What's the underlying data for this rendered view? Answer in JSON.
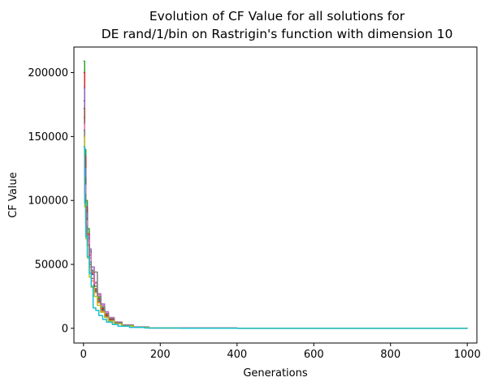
{
  "chart_data": {
    "type": "line",
    "title_lines": [
      "Evolution of CF Value for all solutions for",
      "DE rand/1/bin on Rastrigin's function with dimension 10"
    ],
    "xlabel": "Generations",
    "ylabel": "CF Value",
    "xlim": [
      -25,
      1025
    ],
    "ylim": [
      -11500,
      220000
    ],
    "xticks": [
      0,
      200,
      400,
      600,
      800,
      1000
    ],
    "yticks": [
      0,
      50000,
      100000,
      150000,
      200000
    ],
    "grid": false,
    "legend": "none",
    "series": [
      {
        "color": "#1f77b4",
        "points": [
          [
            0,
            178000
          ],
          [
            3,
            120000
          ],
          [
            6,
            92000
          ],
          [
            10,
            70000
          ],
          [
            15,
            55000
          ],
          [
            20,
            42000
          ],
          [
            28,
            30000
          ],
          [
            36,
            22000
          ],
          [
            45,
            15000
          ],
          [
            55,
            10000
          ],
          [
            65,
            7000
          ],
          [
            80,
            4200
          ],
          [
            100,
            2200
          ],
          [
            130,
            900
          ],
          [
            170,
            350
          ],
          [
            250,
            120
          ],
          [
            400,
            40
          ],
          [
            1000,
            10
          ]
        ]
      },
      {
        "color": "#ff7f0e",
        "points": [
          [
            0,
            165000
          ],
          [
            3,
            110000
          ],
          [
            6,
            82000
          ],
          [
            10,
            66000
          ],
          [
            15,
            48000
          ],
          [
            20,
            37000
          ],
          [
            28,
            28000
          ],
          [
            36,
            20000
          ],
          [
            45,
            13000
          ],
          [
            55,
            9000
          ],
          [
            65,
            6000
          ],
          [
            80,
            3600
          ],
          [
            100,
            1900
          ],
          [
            130,
            800
          ],
          [
            170,
            300
          ],
          [
            250,
            100
          ],
          [
            400,
            35
          ],
          [
            1000,
            8
          ]
        ]
      },
      {
        "color": "#2ca02c",
        "points": [
          [
            0,
            209000
          ],
          [
            3,
            140000
          ],
          [
            6,
            100000
          ],
          [
            10,
            78000
          ],
          [
            15,
            60000
          ],
          [
            20,
            45000
          ],
          [
            28,
            33000
          ],
          [
            36,
            24000
          ],
          [
            45,
            16000
          ],
          [
            55,
            11000
          ],
          [
            65,
            7500
          ],
          [
            80,
            4500
          ],
          [
            100,
            2400
          ],
          [
            130,
            1000
          ],
          [
            170,
            380
          ],
          [
            250,
            130
          ],
          [
            400,
            45
          ],
          [
            1000,
            12
          ]
        ]
      },
      {
        "color": "#d62728",
        "points": [
          [
            0,
            200000
          ],
          [
            3,
            135000
          ],
          [
            6,
            95000
          ],
          [
            10,
            74000
          ],
          [
            15,
            57000
          ],
          [
            20,
            43000
          ],
          [
            28,
            31000
          ],
          [
            36,
            23000
          ],
          [
            45,
            15500
          ],
          [
            55,
            10500
          ],
          [
            65,
            7200
          ],
          [
            80,
            4300
          ],
          [
            100,
            2300
          ],
          [
            130,
            950
          ],
          [
            170,
            360
          ],
          [
            250,
            125
          ],
          [
            400,
            42
          ],
          [
            1000,
            11
          ]
        ]
      },
      {
        "color": "#9467bd",
        "points": [
          [
            0,
            188000
          ],
          [
            3,
            125000
          ],
          [
            6,
            90000
          ],
          [
            10,
            72000
          ],
          [
            15,
            62000
          ],
          [
            20,
            48000
          ],
          [
            28,
            36000
          ],
          [
            36,
            27000
          ],
          [
            45,
            19000
          ],
          [
            55,
            13000
          ],
          [
            65,
            8500
          ],
          [
            80,
            5000
          ],
          [
            100,
            2700
          ],
          [
            130,
            1100
          ],
          [
            170,
            420
          ],
          [
            250,
            140
          ],
          [
            400,
            50
          ],
          [
            1000,
            13
          ]
        ]
      },
      {
        "color": "#8c564b",
        "points": [
          [
            0,
            172000
          ],
          [
            3,
            118000
          ],
          [
            6,
            86000
          ],
          [
            10,
            68000
          ],
          [
            15,
            50000
          ],
          [
            20,
            39000
          ],
          [
            28,
            29000
          ],
          [
            36,
            21000
          ],
          [
            45,
            14000
          ],
          [
            55,
            9500
          ],
          [
            65,
            6400
          ],
          [
            80,
            3900
          ],
          [
            100,
            2000
          ],
          [
            130,
            850
          ],
          [
            170,
            320
          ],
          [
            250,
            110
          ],
          [
            400,
            38
          ],
          [
            1000,
            9
          ]
        ]
      },
      {
        "color": "#e377c2",
        "points": [
          [
            0,
            160000
          ],
          [
            3,
            112000
          ],
          [
            6,
            84000
          ],
          [
            10,
            69000
          ],
          [
            15,
            58000
          ],
          [
            20,
            46000
          ],
          [
            28,
            35000
          ],
          [
            36,
            26000
          ],
          [
            45,
            18000
          ],
          [
            55,
            12500
          ],
          [
            65,
            8200
          ],
          [
            80,
            4800
          ],
          [
            100,
            2600
          ],
          [
            130,
            1050
          ],
          [
            170,
            400
          ],
          [
            250,
            135
          ],
          [
            400,
            48
          ],
          [
            1000,
            12
          ]
        ]
      },
      {
        "color": "#7f7f7f",
        "points": [
          [
            0,
            155000
          ],
          [
            3,
            105000
          ],
          [
            6,
            80000
          ],
          [
            10,
            65000
          ],
          [
            15,
            52000
          ],
          [
            20,
            44000
          ],
          [
            28,
            44000
          ],
          [
            36,
            25000
          ],
          [
            45,
            17000
          ],
          [
            55,
            11500
          ],
          [
            65,
            7800
          ],
          [
            80,
            4600
          ],
          [
            100,
            2500
          ],
          [
            130,
            1000
          ],
          [
            170,
            380
          ],
          [
            250,
            128
          ],
          [
            400,
            44
          ],
          [
            1000,
            11
          ]
        ]
      },
      {
        "color": "#bcbd22",
        "points": [
          [
            0,
            150000
          ],
          [
            3,
            95000
          ],
          [
            6,
            70000
          ],
          [
            10,
            55000
          ],
          [
            15,
            40000
          ],
          [
            20,
            32000
          ],
          [
            28,
            25000
          ],
          [
            36,
            18000
          ],
          [
            45,
            12500
          ],
          [
            55,
            8500
          ],
          [
            65,
            5800
          ],
          [
            80,
            3500
          ],
          [
            100,
            1800
          ],
          [
            130,
            750
          ],
          [
            170,
            280
          ],
          [
            250,
            95
          ],
          [
            400,
            32
          ],
          [
            1000,
            8
          ]
        ]
      },
      {
        "color": "#17becf",
        "points": [
          [
            0,
            142000
          ],
          [
            3,
            98000
          ],
          [
            6,
            72000
          ],
          [
            10,
            56000
          ],
          [
            15,
            43000
          ],
          [
            20,
            33000
          ],
          [
            25,
            16000
          ],
          [
            32,
            14000
          ],
          [
            40,
            10000
          ],
          [
            50,
            7000
          ],
          [
            60,
            4800
          ],
          [
            75,
            3000
          ],
          [
            90,
            1700
          ],
          [
            120,
            700
          ],
          [
            160,
            260
          ],
          [
            250,
            90
          ],
          [
            400,
            30
          ],
          [
            1000,
            7
          ]
        ]
      }
    ]
  }
}
